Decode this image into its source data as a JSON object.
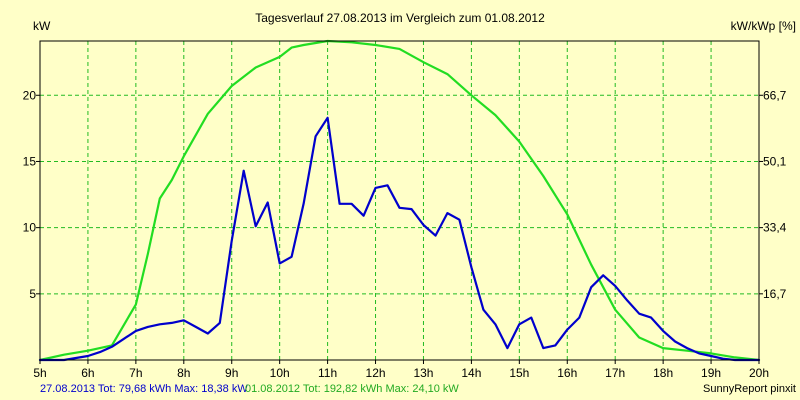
{
  "chart_data": {
    "type": "line",
    "title": "Tagesverlauf 27.08.2013 im Vergleich zum 01.08.2012",
    "ylabel_left": "kW",
    "ylabel_right": "kW/kWp [%]",
    "x_ticks": [
      "5h",
      "6h",
      "7h",
      "8h",
      "9h",
      "10h",
      "11h",
      "12h",
      "13h",
      "14h",
      "15h",
      "16h",
      "17h",
      "18h",
      "19h",
      "20h"
    ],
    "x_range": [
      5,
      20
    ],
    "y_ticks_left": [
      "5",
      "10",
      "15",
      "20"
    ],
    "y_tick_values_left": [
      5,
      10,
      15,
      20
    ],
    "y_ticks_right": [
      "16,7",
      "33,4",
      "50,1",
      "66,7"
    ],
    "ylim": [
      0,
      24.1
    ],
    "grid": true,
    "series": [
      {
        "name": "27.08.2013",
        "color": "#0000cc",
        "x": [
          5.0,
          5.5,
          6.0,
          6.25,
          6.5,
          6.75,
          7.0,
          7.25,
          7.5,
          7.75,
          8.0,
          8.25,
          8.5,
          8.75,
          9.0,
          9.25,
          9.5,
          9.75,
          10.0,
          10.25,
          10.5,
          10.75,
          11.0,
          11.25,
          11.5,
          11.75,
          12.0,
          12.25,
          12.5,
          12.75,
          13.0,
          13.25,
          13.5,
          13.75,
          14.0,
          14.25,
          14.5,
          14.75,
          15.0,
          15.25,
          15.5,
          15.75,
          16.0,
          16.25,
          16.5,
          16.75,
          17.0,
          17.25,
          17.5,
          17.75,
          18.0,
          18.25,
          18.5,
          18.75,
          19.0,
          19.25,
          19.5,
          20.0
        ],
        "values": [
          0,
          0,
          0.3,
          0.6,
          1.0,
          1.6,
          2.2,
          2.5,
          2.7,
          2.8,
          3.0,
          2.5,
          2.0,
          2.8,
          9.0,
          14.3,
          10.1,
          11.9,
          7.3,
          7.8,
          11.8,
          16.9,
          18.3,
          11.8,
          11.8,
          10.9,
          13.0,
          13.2,
          11.5,
          11.4,
          10.2,
          9.4,
          11.1,
          10.6,
          7.0,
          3.8,
          2.7,
          0.9,
          2.7,
          3.2,
          0.9,
          1.1,
          2.3,
          3.2,
          5.5,
          6.4,
          5.6,
          4.5,
          3.5,
          3.2,
          2.2,
          1.4,
          0.9,
          0.5,
          0.3,
          0.1,
          0,
          0
        ]
      },
      {
        "name": "01.08.2012",
        "color": "#22dd22",
        "x": [
          5.0,
          5.5,
          6.0,
          6.5,
          7.0,
          7.25,
          7.5,
          7.75,
          8.0,
          8.5,
          9.0,
          9.5,
          10.0,
          10.25,
          10.5,
          11.0,
          11.5,
          12.0,
          12.5,
          13.0,
          13.5,
          14.0,
          14.5,
          15.0,
          15.5,
          16.0,
          16.5,
          17.0,
          17.5,
          18.0,
          18.5,
          19.0,
          19.5,
          20.0
        ],
        "values": [
          0,
          0.4,
          0.7,
          1.1,
          4.2,
          8.0,
          12.2,
          13.6,
          15.4,
          18.6,
          20.7,
          22.1,
          22.9,
          23.6,
          23.8,
          24.1,
          24.0,
          23.8,
          23.5,
          22.5,
          21.6,
          20.0,
          18.5,
          16.5,
          13.9,
          11.0,
          7.2,
          3.8,
          1.7,
          0.9,
          0.7,
          0.5,
          0.2,
          0
        ]
      }
    ],
    "legend": {
      "entry1": "27.08.2013 Tot: 79,68 kWh Max: 18,38 kW",
      "entry2": "01.08.2012 Tot: 192,82 kWh Max: 24,10 kW",
      "credit": "SunnyReport pinxit"
    },
    "colors": {
      "background": "#ffffc8",
      "grid": "#22bb22"
    }
  }
}
